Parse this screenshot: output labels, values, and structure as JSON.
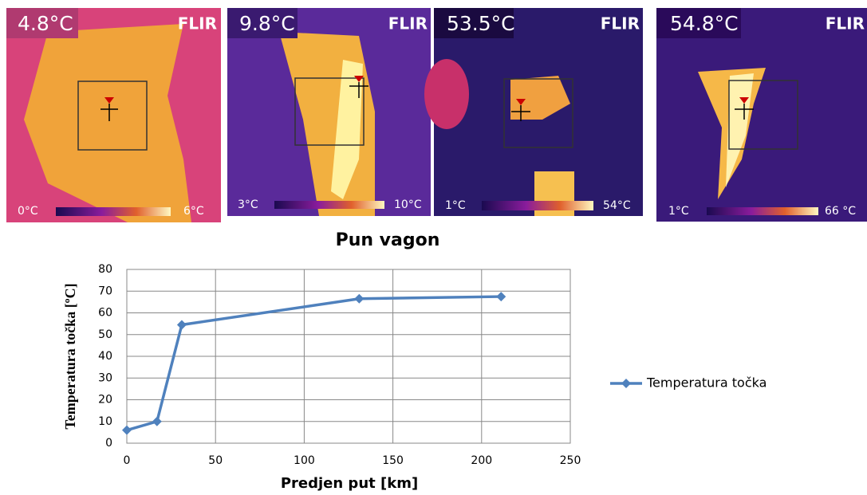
{
  "images": [
    {
      "reading": "4.8°C",
      "brand": "FLIR",
      "scale_min": "0°C",
      "scale_max": "6°C"
    },
    {
      "reading": "9.8°C",
      "brand": "FLIR",
      "scale_min": "3°C",
      "scale_max": "10°C"
    },
    {
      "reading": "53.5°C",
      "brand": "FLIR",
      "scale_min": "1°C",
      "scale_max": "54°C"
    },
    {
      "reading": "54.8°C",
      "brand": "FLIR",
      "scale_min": "1°C",
      "scale_max": "66 °C"
    }
  ],
  "chart_data": {
    "type": "line",
    "title": "Pun vagon",
    "x_label": "Predjen put [km]",
    "y_label": "Temperatura točka [ºC]",
    "x": [
      0,
      17,
      31,
      131,
      211
    ],
    "series": [
      {
        "name": "Temperatura točka",
        "color": "#4f81bd",
        "values": [
          6,
          10,
          54.5,
          66.5,
          67.5
        ]
      }
    ],
    "xlim": [
      0,
      250
    ],
    "xticks": [
      0,
      50,
      100,
      150,
      200,
      250
    ],
    "ylim": [
      0,
      80
    ],
    "yticks": [
      0,
      10,
      20,
      30,
      40,
      50,
      60,
      70,
      80
    ],
    "grid": true,
    "legend": "right"
  }
}
